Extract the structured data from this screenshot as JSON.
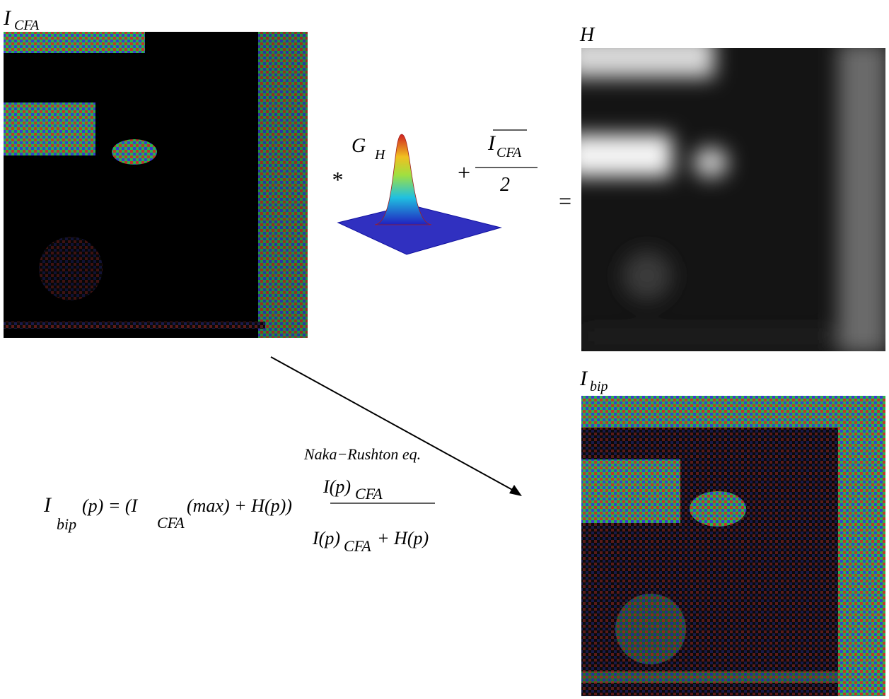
{
  "labels": {
    "icfa": {
      "base": "I",
      "sub": "CFA"
    },
    "h": "H",
    "ibip": {
      "base": "I",
      "sub": "bip"
    },
    "gh": {
      "base": "G",
      "sub": "H"
    },
    "convolve": "*",
    "plus": "+",
    "mean": {
      "base": "I",
      "sub": "CFA",
      "denominator": "2"
    },
    "equals": "=",
    "arrow": "Naka−Rushton eq."
  },
  "formula": {
    "lhs_base": "I",
    "lhs_sub": "bip",
    "middle": "(p) = (I",
    "middle_sub": "CFA",
    "rest": "(max) + H(p))",
    "num_base": "I(p)",
    "num_sub": "CFA",
    "den_base": "I(p)",
    "den_sub": "CFA",
    "den_rest": "+ H(p)"
  }
}
